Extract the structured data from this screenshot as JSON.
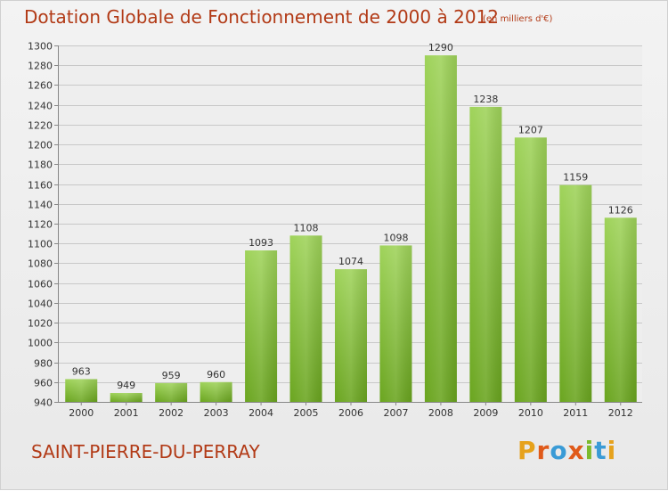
{
  "chart_data": {
    "type": "bar",
    "title": "Dotation Globale de Fonctionnement de 2000 à 2012",
    "subtitle": "(en milliers d'€)",
    "categories": [
      "2000",
      "2001",
      "2002",
      "2003",
      "2004",
      "2005",
      "2006",
      "2007",
      "2008",
      "2009",
      "2010",
      "2011",
      "2012"
    ],
    "values": [
      963,
      949,
      959,
      960,
      1093,
      1108,
      1074,
      1098,
      1290,
      1238,
      1207,
      1159,
      1126
    ],
    "ylim": [
      940,
      1300
    ],
    "yticks": [
      940,
      960,
      980,
      1000,
      1020,
      1040,
      1060,
      1080,
      1100,
      1120,
      1140,
      1160,
      1180,
      1200,
      1220,
      1240,
      1260,
      1280,
      1300
    ],
    "grid": true,
    "bar_color": "#7cba2c"
  },
  "footer": {
    "commune": "SAINT-PIERRE-DU-PERRAY",
    "brand": "Proxiti"
  },
  "colors": {
    "title": "#b23a16",
    "brand_letters": [
      "#e6a21c",
      "#e05a1a",
      "#3a9bd6",
      "#e05a1a",
      "#7cba2c",
      "#3a9bd6",
      "#e6a21c"
    ]
  }
}
